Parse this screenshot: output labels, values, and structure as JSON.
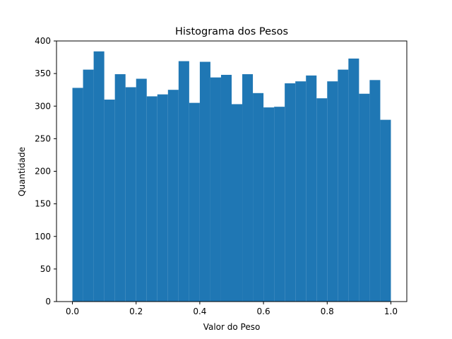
{
  "chart_data": {
    "type": "bar",
    "title": "Histograma dos Pesos",
    "xlabel": "Valor do Peso",
    "ylabel": "Quantidade",
    "xlim": [
      -0.05,
      1.05
    ],
    "ylim": [
      0,
      400
    ],
    "xticks": [
      0.0,
      0.2,
      0.4,
      0.6,
      0.8,
      1.0
    ],
    "xtick_labels": [
      "0.0",
      "0.2",
      "0.4",
      "0.6",
      "0.8",
      "1.0"
    ],
    "yticks": [
      0,
      50,
      100,
      150,
      200,
      250,
      300,
      350,
      400
    ],
    "ytick_labels": [
      "0",
      "50",
      "100",
      "150",
      "200",
      "250",
      "300",
      "350",
      "400"
    ],
    "bin_range": [
      0.0,
      1.0
    ],
    "bins": 30,
    "values": [
      328,
      356,
      384,
      310,
      349,
      329,
      342,
      315,
      318,
      325,
      369,
      305,
      368,
      344,
      348,
      303,
      349,
      320,
      298,
      299,
      335,
      338,
      347,
      312,
      338,
      356,
      373,
      319,
      340,
      279
    ],
    "grid": false,
    "legend": "none"
  },
  "colors": {
    "bar": "#1f77b4",
    "axis": "#000000",
    "background": "#ffffff"
  }
}
